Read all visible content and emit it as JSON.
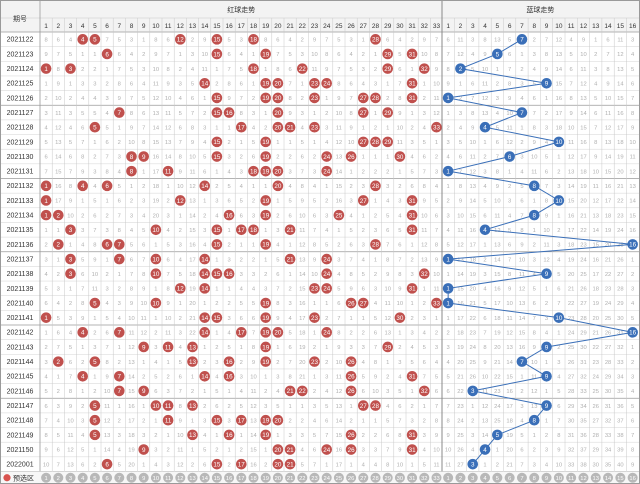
{
  "header": {
    "period_label": "期号",
    "red_title": "红球走势",
    "blue_title": "蓝球走势",
    "red_numbers": [
      "1",
      "2",
      "3",
      "4",
      "5",
      "6",
      "7",
      "8",
      "9",
      "10",
      "11",
      "12",
      "13",
      "14",
      "15",
      "16",
      "17",
      "18",
      "19",
      "20",
      "21",
      "22",
      "23",
      "24",
      "25",
      "26",
      "27",
      "28",
      "29",
      "30",
      "31",
      "32",
      "33"
    ],
    "blue_numbers": [
      "1",
      "2",
      "3",
      "4",
      "5",
      "6",
      "7",
      "8",
      "9",
      "10",
      "11",
      "12",
      "13",
      "14",
      "15",
      "16"
    ]
  },
  "rows": [
    {
      "period": "2021122",
      "red": [
        4,
        5,
        12,
        15,
        18,
        28
      ],
      "blue": 7
    },
    {
      "period": "2021123",
      "red": [
        6,
        15,
        19,
        29,
        31
      ],
      "blue": 5
    },
    {
      "period": "2021124",
      "red": [
        1,
        3,
        18,
        22,
        29,
        32
      ],
      "blue": 2
    },
    {
      "period": "2021125",
      "red": [
        14,
        19,
        20,
        23,
        24,
        31
      ],
      "blue": 9
    },
    {
      "period": "2021126",
      "red": [
        15,
        19,
        20,
        23,
        27,
        28,
        31
      ],
      "blue": 1
    },
    {
      "period": "2021127",
      "red": [
        7,
        15,
        16,
        20,
        27,
        29
      ],
      "blue": 7
    },
    {
      "period": "2021128",
      "red": [
        5,
        17,
        20,
        21,
        23,
        33
      ],
      "blue": 4
    },
    {
      "period": "2021129",
      "red": [
        15,
        19,
        27,
        28,
        29
      ],
      "blue": 10
    },
    {
      "period": "2021130",
      "red": [
        8,
        9,
        15,
        19,
        24,
        26,
        30
      ],
      "blue": 6
    },
    {
      "period": "2021131",
      "red": [
        8,
        11,
        18,
        19,
        20,
        24
      ],
      "blue": 1
    },
    {
      "period": "2021132",
      "red": [
        1,
        4,
        6,
        14,
        20,
        28
      ],
      "blue": 8
    },
    {
      "period": "2021133",
      "red": [
        1,
        12,
        19,
        27,
        31
      ],
      "blue": 10
    },
    {
      "period": "2021134",
      "red": [
        1,
        2,
        16,
        19,
        25,
        31
      ],
      "blue": 8
    },
    {
      "period": "2021135",
      "red": [
        3,
        10,
        15,
        17,
        18,
        21,
        31
      ],
      "blue": 4
    },
    {
      "period": "2021136",
      "red": [
        2,
        6,
        7,
        15,
        19,
        28
      ],
      "blue": 16
    },
    {
      "period": "2021137",
      "red": [
        3,
        7,
        10,
        14,
        21,
        24
      ],
      "blue": 1
    },
    {
      "period": "2021138",
      "red": [
        3,
        10,
        14,
        15,
        16,
        24,
        32
      ],
      "blue": 9
    },
    {
      "period": "2021139",
      "red": [
        12,
        14,
        23,
        24,
        31
      ],
      "blue": 1
    },
    {
      "period": "2021140",
      "red": [
        5,
        10,
        19,
        26,
        27,
        33
      ],
      "blue": 1
    },
    {
      "period": "2021141",
      "red": [
        1,
        14,
        15,
        19,
        23,
        30
      ],
      "blue": 10
    },
    {
      "period": "2021142",
      "red": [
        4,
        7,
        14,
        17,
        19,
        20,
        24
      ],
      "blue": 16
    },
    {
      "period": "2021143",
      "red": [
        9,
        11,
        13,
        19,
        29
      ],
      "blue": 9
    },
    {
      "period": "2021144",
      "red": [
        2,
        5,
        13,
        16,
        19,
        23,
        26
      ],
      "blue": 7
    },
    {
      "period": "2021145",
      "red": [
        4,
        7,
        14,
        16,
        26,
        31
      ],
      "blue": 9
    },
    {
      "period": "2021146",
      "red": [
        7,
        9,
        21,
        22,
        26,
        32
      ],
      "blue": 3
    },
    {
      "period": "2021147",
      "red": [
        5,
        10,
        11,
        13,
        27,
        28
      ],
      "blue": 9
    },
    {
      "period": "2021148",
      "red": [
        5,
        11,
        15,
        17,
        19,
        20
      ],
      "blue": 8
    },
    {
      "period": "2021149",
      "red": [
        5,
        13,
        16,
        19,
        26,
        31
      ],
      "blue": 5
    },
    {
      "period": "2021150",
      "red": [
        9,
        20,
        21,
        24,
        26,
        31
      ],
      "blue": 4
    },
    {
      "period": "2022001",
      "red": [
        6,
        15,
        17,
        20,
        21
      ],
      "blue": 3
    }
  ],
  "footer": {
    "label": "预选区"
  },
  "colors": {
    "red_ball": "#c0504d",
    "blue_ball": "#3a6fb8",
    "grid": "#c8c8c8",
    "missing_text": "#b0b0b0",
    "header_bg": "#f3f3f3"
  }
}
